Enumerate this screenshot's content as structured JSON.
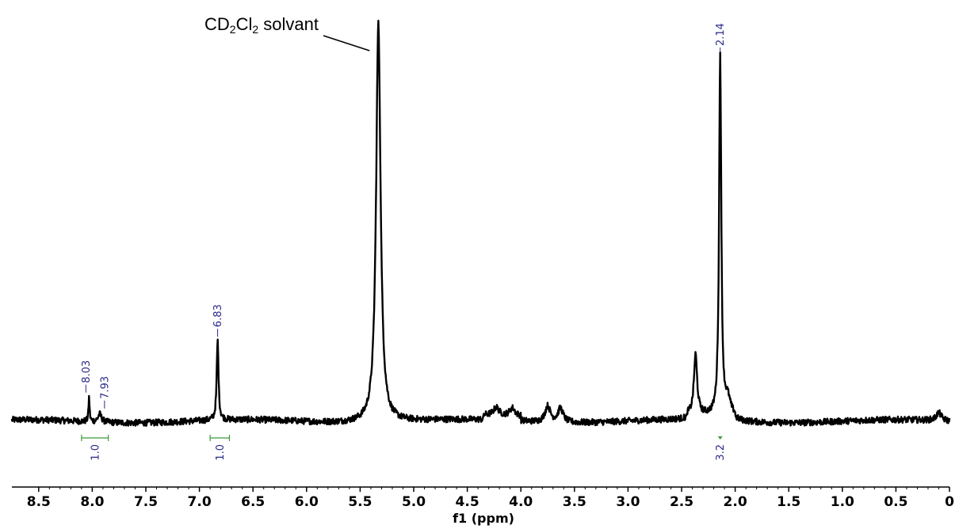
{
  "chart_data": {
    "type": "line",
    "title": "",
    "xlabel": "f1 (ppm)",
    "ylabel": "",
    "x_reversed": true,
    "xlim": [
      8.75,
      0
    ],
    "ylim": [
      0,
      1
    ],
    "grid": false,
    "ticks": [
      {
        "v": 8.5,
        "label": "8.5"
      },
      {
        "v": 8.0,
        "label": "8.0"
      },
      {
        "v": 7.5,
        "label": "7.5"
      },
      {
        "v": 7.0,
        "label": "7.0"
      },
      {
        "v": 6.5,
        "label": "6.5"
      },
      {
        "v": 6.0,
        "label": "6.0"
      },
      {
        "v": 5.5,
        "label": "5.5"
      },
      {
        "v": 5.0,
        "label": "5.0"
      },
      {
        "v": 4.5,
        "label": "4.5"
      },
      {
        "v": 4.0,
        "label": "4.0"
      },
      {
        "v": 3.5,
        "label": "3.5"
      },
      {
        "v": 3.0,
        "label": "3.0"
      },
      {
        "v": 2.5,
        "label": "2.5"
      },
      {
        "v": 2.0,
        "label": "2.0"
      },
      {
        "v": 1.5,
        "label": "1.5"
      },
      {
        "v": 1.0,
        "label": "1.0"
      },
      {
        "v": 0.5,
        "label": "0.5"
      },
      {
        "v": 0,
        "label": "0"
      }
    ],
    "peaks": [
      {
        "ppm": 8.03,
        "height": 0.06,
        "label": "8.03"
      },
      {
        "ppm": 7.93,
        "height": 0.02,
        "label": "7.93"
      },
      {
        "ppm": 6.83,
        "height": 0.2,
        "label": "6.83"
      },
      {
        "ppm": 5.33,
        "height": 1.0,
        "label": ""
      },
      {
        "ppm": 2.37,
        "height": 0.15,
        "label": ""
      },
      {
        "ppm": 2.14,
        "height": 0.91,
        "label": "2.14"
      },
      {
        "ppm": 2.07,
        "height": 0.04,
        "label": ""
      },
      {
        "ppm": 3.75,
        "height": 0.04,
        "label": ""
      },
      {
        "ppm": 3.63,
        "height": 0.035,
        "label": ""
      },
      {
        "ppm": 4.23,
        "height": 0.02,
        "label": ""
      },
      {
        "ppm": 4.08,
        "height": 0.02,
        "label": ""
      },
      {
        "ppm": 0.1,
        "height": 0.02,
        "label": ""
      }
    ],
    "integrals": [
      {
        "from": 8.1,
        "to": 7.85,
        "value": "1.0"
      },
      {
        "from": 6.9,
        "to": 6.72,
        "value": "1.0"
      },
      {
        "from": 2.14,
        "to": 2.14,
        "value": "3.2"
      }
    ],
    "annotations": [
      {
        "text_main": "CD",
        "sub1": "2",
        "mid": "Cl",
        "sub2": "2",
        "tail": " solvant",
        "target_ppm": 5.36
      }
    ]
  }
}
